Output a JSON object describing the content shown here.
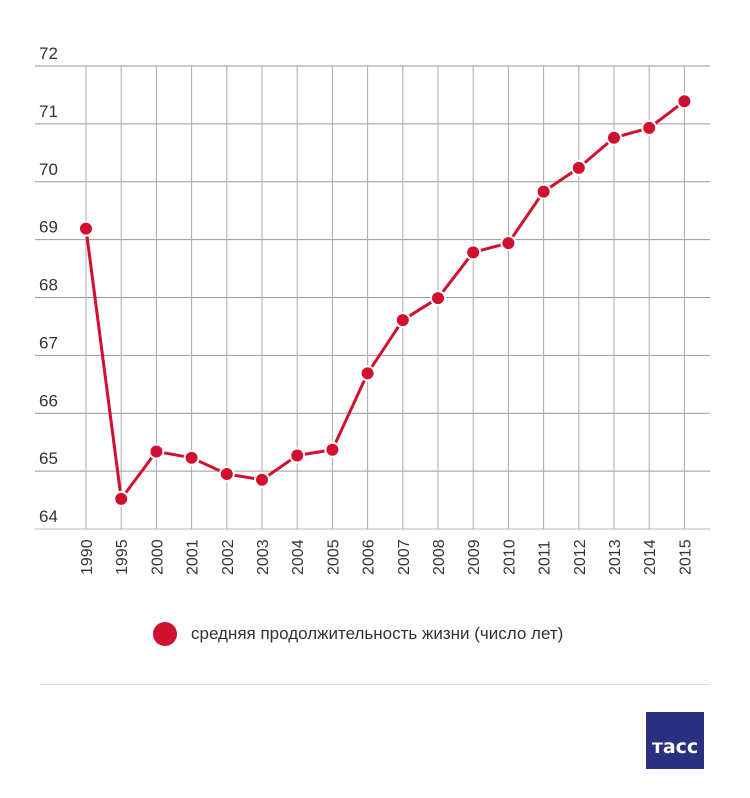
{
  "chart_data": {
    "type": "line",
    "title": "",
    "xlabel": "",
    "ylabel": "",
    "ylim": [
      64,
      72
    ],
    "yticks": [
      64,
      65,
      66,
      67,
      68,
      69,
      70,
      71,
      72
    ],
    "ytick_labels": [
      "64",
      "65",
      "66",
      "67",
      "68",
      "69",
      "70",
      "71",
      "72"
    ],
    "categories": [
      "1990",
      "1995",
      "2000",
      "2001",
      "2002",
      "2003",
      "2004",
      "2005",
      "2006",
      "2007",
      "2008",
      "2009",
      "2010",
      "2011",
      "2012",
      "2013",
      "2014",
      "2015"
    ],
    "series": [
      {
        "name": "средняя продолжительность жизни (число лет)",
        "color": "#d0102e",
        "values": [
          69.19,
          64.52,
          65.34,
          65.23,
          64.95,
          64.85,
          65.27,
          65.37,
          66.69,
          67.61,
          67.99,
          68.78,
          68.94,
          69.83,
          70.24,
          70.76,
          70.93,
          71.39
        ]
      }
    ],
    "grid": true,
    "legend_position": "bottom-center"
  },
  "legend": {
    "label": "средняя продолжительность жизни (число лет)",
    "color": "#d0102e"
  },
  "logo": {
    "text": "тасс",
    "color": "#2a2f7f"
  }
}
